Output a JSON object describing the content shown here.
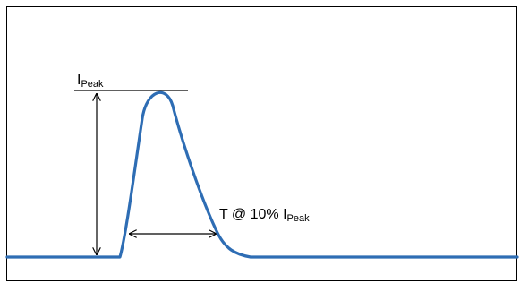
{
  "annotations": {
    "peak_symbol": "I",
    "peak_subscript": "Peak",
    "width_prefix": "T @ 10% I",
    "width_subscript": "Peak"
  },
  "colors": {
    "pulse": "#2e6db4",
    "frame": "#000000",
    "annotation_line": "#000000",
    "background": "#ffffff"
  }
}
